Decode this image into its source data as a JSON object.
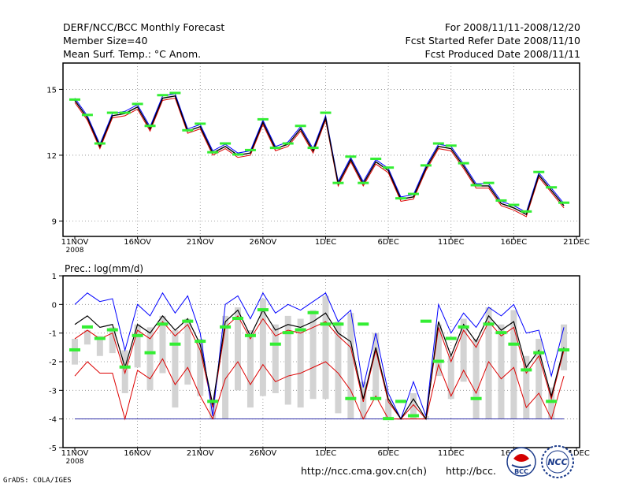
{
  "header": {
    "title": "DERF/NCC/BCC Monthly Forecast",
    "member_size": "Member Size=40",
    "variable": "Mean Surf. Temp.: °C Anom.",
    "period": "For 2008/11/11-2008/12/20",
    "started": "Fcst Started Refer Date 2008/11/10",
    "produced": "Fcst Produced Date 2008/11/11"
  },
  "footer": {
    "url_ncc": "http://ncc.cma.gov.cn(ch)",
    "url_bcc": "http://bcc.",
    "credit": "GrADS: COLA/IGES",
    "logo_bcc": "BCC",
    "logo_ncc": "NCC"
  },
  "colors": {
    "blue": "#0000ff",
    "red": "#dd0000",
    "green": "#33ee33",
    "bar": "#d3d3d3",
    "black": "#000000"
  },
  "chart_data": [
    {
      "type": "line",
      "title": "Mean Surf. Temp.: °C Anom.",
      "xlabel": "",
      "ylabel": "",
      "ylim": [
        8.3,
        16.2
      ],
      "yticks": [
        9,
        12,
        15
      ],
      "xlim": [
        0,
        40
      ],
      "xtick_labels": [
        "11NOV",
        "16NOV",
        "21NOV",
        "26NOV",
        "1DEC",
        "6DEC",
        "11DEC",
        "16DEC",
        "21DEC"
      ],
      "xtick_year": "2008",
      "grid": true,
      "x": [
        0.0,
        1.0,
        2.0,
        3.0,
        4.0,
        5.0,
        6.0,
        7.0,
        8.0,
        9.0,
        10.0,
        11.0,
        12.0,
        13.0,
        14.0,
        15.0,
        16.0,
        17.0,
        18.0,
        19.0,
        20.0,
        21.0,
        22.0,
        23.0,
        24.0,
        25.0,
        26.0,
        27.0,
        28.0,
        29.0,
        30.0,
        31.0,
        32.0,
        33.0,
        34.0,
        35.0,
        36.0,
        37.0,
        38.0,
        39.0
      ],
      "series": [
        {
          "name": "black",
          "values": [
            14.5,
            13.7,
            12.4,
            13.8,
            13.9,
            14.2,
            13.2,
            14.6,
            14.7,
            13.1,
            13.3,
            12.1,
            12.4,
            12.0,
            12.1,
            13.5,
            12.3,
            12.5,
            13.2,
            12.2,
            13.7,
            10.7,
            11.8,
            10.7,
            11.7,
            11.3,
            10.0,
            10.1,
            11.4,
            12.4,
            12.3,
            11.5,
            10.6,
            10.6,
            9.8,
            9.6,
            9.3,
            11.1,
            10.4,
            9.7
          ]
        },
        {
          "name": "upper",
          "values": [
            14.6,
            13.8,
            12.5,
            13.9,
            14.0,
            14.3,
            13.3,
            14.7,
            14.8,
            13.2,
            13.4,
            12.2,
            12.5,
            12.1,
            12.2,
            13.6,
            12.4,
            12.6,
            13.3,
            12.3,
            13.8,
            10.8,
            11.9,
            10.8,
            11.8,
            11.4,
            10.1,
            10.2,
            11.5,
            12.5,
            12.4,
            11.6,
            10.7,
            10.7,
            9.9,
            9.7,
            9.4,
            11.2,
            10.5,
            9.8
          ]
        },
        {
          "name": "lower",
          "values": [
            14.4,
            13.6,
            12.3,
            13.7,
            13.8,
            14.1,
            13.1,
            14.5,
            14.6,
            13.0,
            13.2,
            12.0,
            12.3,
            11.9,
            12.0,
            13.4,
            12.2,
            12.4,
            13.1,
            12.1,
            13.6,
            10.6,
            11.7,
            10.6,
            11.6,
            11.2,
            9.9,
            10.0,
            11.3,
            12.3,
            12.2,
            11.4,
            10.5,
            10.5,
            9.7,
            9.5,
            9.2,
            11.0,
            10.3,
            9.6
          ]
        },
        {
          "name": "obs",
          "values": [
            14.5,
            13.8,
            12.5,
            13.9,
            13.9,
            14.3,
            13.3,
            14.7,
            14.8,
            13.1,
            13.4,
            12.1,
            12.5,
            12.0,
            12.2,
            13.6,
            12.3,
            12.5,
            13.3,
            12.3,
            13.9,
            10.7,
            11.9,
            10.7,
            11.8,
            11.4,
            10.0,
            10.2,
            11.5,
            12.5,
            12.4,
            11.6,
            10.6,
            10.7,
            9.9,
            9.7,
            9.4,
            11.2,
            10.5,
            9.8
          ]
        }
      ]
    },
    {
      "type": "line",
      "title": "Prec.: log(mm/d)",
      "xlabel": "",
      "ylabel": "",
      "ylim": [
        -5,
        1
      ],
      "yticks": [
        -5,
        -4,
        -3,
        -2,
        -1,
        0,
        1
      ],
      "xlim": [
        0,
        40
      ],
      "xtick_labels": [
        "11NOV",
        "16NOV",
        "21NOV",
        "26NOV",
        "1DEC",
        "6DEC",
        "11DEC",
        "16DEC",
        "21DEC"
      ],
      "xtick_year": "2008",
      "grid": true,
      "x": [
        0.0,
        1.0,
        2.0,
        3.0,
        4.0,
        5.0,
        6.0,
        7.0,
        8.0,
        9.0,
        10.0,
        11.0,
        12.0,
        13.0,
        14.0,
        15.0,
        16.0,
        17.0,
        18.0,
        19.0,
        20.0,
        21.0,
        22.0,
        23.0,
        24.0,
        25.0,
        26.0,
        27.0,
        28.0,
        29.0,
        30.0,
        31.0,
        32.0,
        33.0,
        34.0,
        35.0,
        36.0,
        37.0,
        38.0,
        39.0
      ],
      "series": [
        {
          "name": "blue",
          "values": [
            0.0,
            0.4,
            0.1,
            0.2,
            -1.6,
            0.0,
            -0.4,
            0.4,
            -0.3,
            0.3,
            -1.0,
            -3.9,
            0.0,
            0.3,
            -0.5,
            0.4,
            -0.3,
            0.0,
            -0.2,
            0.1,
            0.4,
            -0.6,
            -0.2,
            -2.9,
            -1.0,
            -3.1,
            -4.0,
            -2.7,
            -3.9,
            0.0,
            -1.0,
            -0.3,
            -0.8,
            -0.1,
            -0.4,
            0.0,
            -1.0,
            -0.9,
            -2.5,
            -0.8
          ]
        },
        {
          "name": "black",
          "values": [
            -0.7,
            -0.4,
            -0.8,
            -0.7,
            -2.2,
            -0.7,
            -1.0,
            -0.4,
            -0.9,
            -0.5,
            -1.4,
            -3.5,
            -0.6,
            -0.2,
            -1.1,
            -0.2,
            -0.9,
            -0.7,
            -0.8,
            -0.6,
            -0.3,
            -1.0,
            -1.3,
            -3.3,
            -1.5,
            -3.3,
            -4.0,
            -3.3,
            -4.0,
            -0.6,
            -1.8,
            -0.7,
            -1.3,
            -0.4,
            -0.9,
            -0.6,
            -2.2,
            -1.6,
            -3.2,
            -1.5
          ]
        },
        {
          "name": "red_upper",
          "values": [
            -1.2,
            -0.9,
            -1.2,
            -1.0,
            -2.4,
            -0.9,
            -1.2,
            -0.6,
            -1.1,
            -0.7,
            -1.6,
            -3.6,
            -0.8,
            -0.4,
            -1.2,
            -0.5,
            -1.1,
            -0.9,
            -1.0,
            -0.8,
            -0.6,
            -1.1,
            -1.5,
            -3.4,
            -1.6,
            -3.4,
            -4.0,
            -3.5,
            -4.0,
            -0.8,
            -2.0,
            -0.9,
            -1.5,
            -0.6,
            -1.1,
            -0.8,
            -2.4,
            -1.8,
            -3.3,
            -1.6
          ]
        },
        {
          "name": "red_lower",
          "values": [
            -2.5,
            -2.0,
            -2.4,
            -2.4,
            -4.0,
            -2.3,
            -2.6,
            -1.9,
            -2.8,
            -2.2,
            -3.2,
            -4.0,
            -2.6,
            -2.0,
            -2.8,
            -2.1,
            -2.7,
            -2.5,
            -2.4,
            -2.2,
            -2.0,
            -2.4,
            -3.0,
            -4.0,
            -3.2,
            -4.0,
            -4.0,
            -4.0,
            -4.0,
            -2.1,
            -3.2,
            -2.3,
            -3.1,
            -2.0,
            -2.6,
            -2.2,
            -3.6,
            -3.1,
            -4.0,
            -2.5
          ]
        },
        {
          "name": "bar_low",
          "values": [
            -2.1,
            -1.4,
            -1.8,
            -1.7,
            -3.1,
            -2.2,
            -3.0,
            -2.4,
            -3.6,
            -2.8,
            -3.2,
            -4.0,
            -4.0,
            -3.0,
            -3.6,
            -3.2,
            -3.1,
            -3.5,
            -3.6,
            -3.3,
            -3.3,
            -3.8,
            -4.0,
            -4.0,
            -3.3,
            -4.0,
            -4.0,
            -4.0,
            -4.0,
            -2.5,
            -3.3,
            -2.7,
            -4.0,
            -4.0,
            -4.0,
            -4.0,
            -4.0,
            -4.0,
            -4.0,
            -2.3
          ]
        },
        {
          "name": "bar_high",
          "values": [
            -1.2,
            -0.9,
            -1.1,
            -0.8,
            -1.6,
            -0.7,
            -0.8,
            -0.4,
            -0.9,
            -0.5,
            -1.2,
            -3.4,
            -0.4,
            -0.1,
            -0.9,
            0.2,
            -0.7,
            -0.4,
            -0.5,
            -0.2,
            0.3,
            -0.6,
            -0.3,
            -2.7,
            -1.0,
            -3.3,
            -4.0,
            -3.1,
            -3.9,
            -0.7,
            -1.8,
            -0.5,
            -1.2,
            -0.1,
            -0.7,
            -0.2,
            -1.8,
            -1.2,
            -2.9,
            -0.7
          ]
        },
        {
          "name": "obs",
          "values": [
            -1.6,
            -0.8,
            -1.2,
            -0.9,
            -2.2,
            -1.1,
            -1.7,
            -0.7,
            -1.4,
            -0.6,
            -1.3,
            -3.4,
            -0.8,
            -0.5,
            -1.1,
            -0.2,
            -1.4,
            -1.0,
            -0.9,
            -0.3,
            -0.7,
            -0.7,
            -3.3,
            -0.7,
            -3.3,
            -4.0,
            -3.4,
            -3.9,
            -0.6,
            -2.0,
            -1.2,
            -0.8,
            -3.3,
            -0.7,
            -1.0,
            -1.4,
            -2.3,
            -1.7,
            -3.4,
            -1.6
          ]
        }
      ]
    }
  ]
}
